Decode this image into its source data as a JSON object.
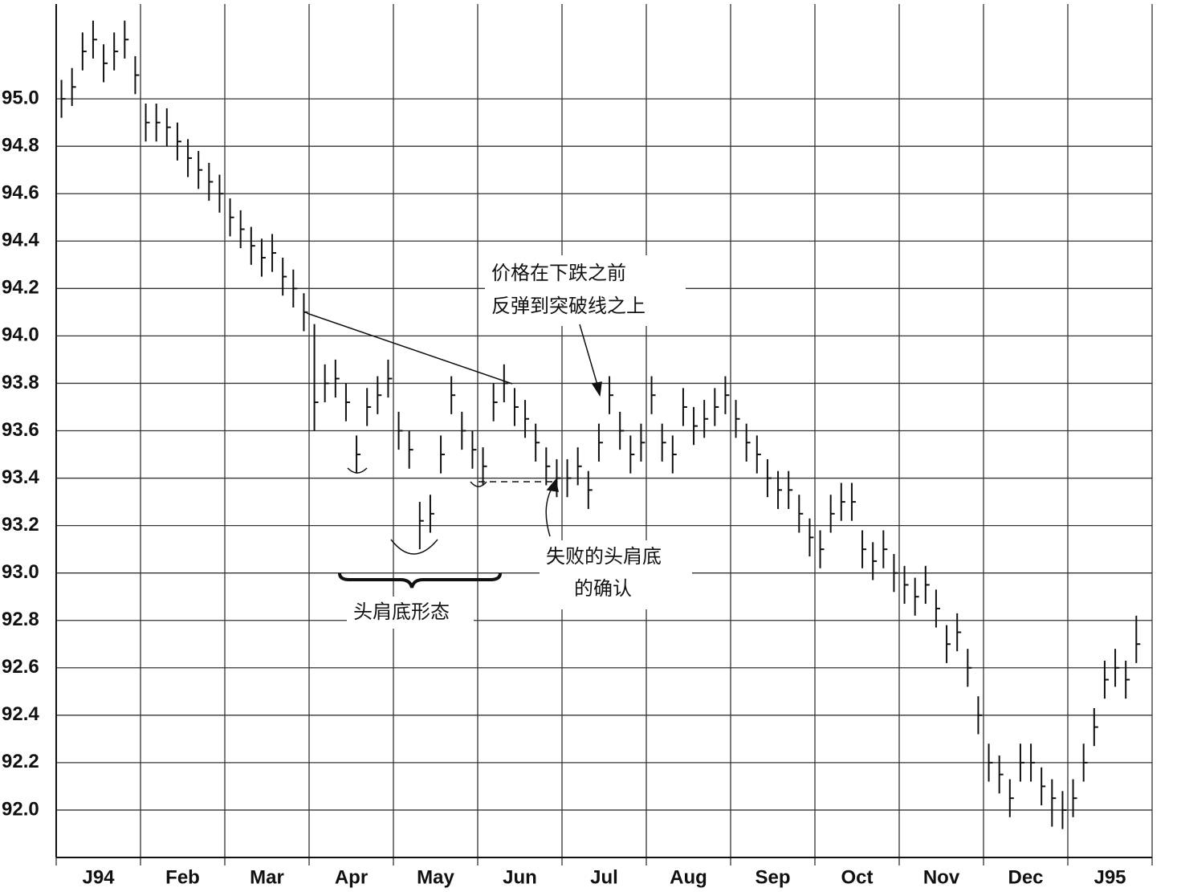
{
  "chart_data": {
    "type": "ohlc",
    "xlim": [
      0,
      104
    ],
    "ylim": [
      91.8,
      95.4
    ],
    "xticks": [
      {
        "value": 4,
        "label": "J94"
      },
      {
        "value": 12,
        "label": "Feb"
      },
      {
        "value": 20,
        "label": "Mar"
      },
      {
        "value": 28,
        "label": "Apr"
      },
      {
        "value": 36,
        "label": "May"
      },
      {
        "value": 44,
        "label": "Jun"
      },
      {
        "value": 52,
        "label": "Jul"
      },
      {
        "value": 60,
        "label": "Aug"
      },
      {
        "value": 68,
        "label": "Sep"
      },
      {
        "value": 76,
        "label": "Oct"
      },
      {
        "value": 84,
        "label": "Nov"
      },
      {
        "value": 92,
        "label": "Dec"
      },
      {
        "value": 100,
        "label": "J95"
      }
    ],
    "xgrid": [
      0,
      8,
      16,
      24,
      32,
      40,
      48,
      56,
      64,
      72,
      80,
      88,
      96,
      104
    ],
    "yticks": [
      {
        "value": 92,
        "label": "92.0"
      },
      {
        "value": 92.2,
        "label": "92.2"
      },
      {
        "value": 92.4,
        "label": "92.4"
      },
      {
        "value": 92.6,
        "label": "92.6"
      },
      {
        "value": 92.8,
        "label": "92.8"
      },
      {
        "value": 93,
        "label": "93.0"
      },
      {
        "value": 93.2,
        "label": "93.2"
      },
      {
        "value": 93.4,
        "label": "93.4"
      },
      {
        "value": 93.6,
        "label": "93.6"
      },
      {
        "value": 93.8,
        "label": "93.8"
      },
      {
        "value": 94,
        "label": "94.0"
      },
      {
        "value": 94.2,
        "label": "94.2"
      },
      {
        "value": 94.4,
        "label": "94.4"
      },
      {
        "value": 94.6,
        "label": "94.6"
      },
      {
        "value": 94.8,
        "label": "94.8"
      },
      {
        "value": 95,
        "label": "95.0"
      }
    ],
    "grid": true,
    "color": "#111111",
    "high": [
      95.08,
      95.13,
      95.28,
      95.33,
      95.23,
      95.28,
      95.33,
      95.18,
      94.98,
      94.98,
      94.96,
      94.9,
      94.83,
      94.78,
      94.73,
      94.68,
      94.58,
      94.53,
      94.46,
      94.41,
      94.43,
      94.33,
      94.28,
      94.18,
      94.05,
      93.88,
      93.9,
      93.8,
      93.58,
      93.78,
      93.83,
      93.9,
      93.68,
      93.6,
      93.3,
      93.33,
      93.58,
      93.83,
      93.68,
      93.6,
      93.53,
      93.8,
      93.88,
      93.78,
      93.73,
      93.63,
      93.53,
      93.48,
      93.48,
      93.53,
      93.43,
      93.63,
      93.83,
      93.68,
      93.58,
      93.63,
      93.83,
      93.63,
      93.58,
      93.78,
      93.7,
      93.73,
      93.78,
      93.83,
      93.73,
      93.63,
      93.58,
      93.48,
      93.43,
      93.43,
      93.33,
      93.23,
      93.18,
      93.33,
      93.38,
      93.38,
      93.18,
      93.13,
      93.18,
      93.08,
      93.03,
      92.98,
      93.03,
      92.93,
      92.78,
      92.83,
      92.68,
      92.48,
      92.28,
      92.23,
      92.13,
      92.28,
      92.28,
      92.18,
      92.13,
      92.08,
      92.13,
      92.28,
      92.43,
      92.63,
      92.68,
      92.63,
      92.82
    ],
    "low": [
      94.92,
      94.97,
      95.12,
      95.17,
      95.07,
      95.12,
      95.17,
      95.02,
      94.82,
      94.82,
      94.8,
      94.74,
      94.67,
      94.62,
      94.57,
      94.52,
      94.42,
      94.37,
      94.3,
      94.25,
      94.27,
      94.17,
      94.12,
      94.02,
      93.6,
      93.72,
      93.74,
      93.64,
      93.42,
      93.62,
      93.67,
      93.74,
      93.52,
      93.44,
      93.1,
      93.17,
      93.42,
      93.67,
      93.52,
      93.44,
      93.37,
      93.64,
      93.72,
      93.62,
      93.57,
      93.47,
      93.37,
      93.32,
      93.32,
      93.37,
      93.27,
      93.47,
      93.67,
      93.52,
      93.42,
      93.47,
      93.67,
      93.47,
      93.42,
      93.62,
      93.54,
      93.57,
      93.62,
      93.67,
      93.57,
      93.47,
      93.42,
      93.32,
      93.27,
      93.27,
      93.17,
      93.07,
      93.02,
      93.17,
      93.22,
      93.22,
      93.02,
      92.97,
      93.02,
      92.92,
      92.87,
      92.82,
      92.87,
      92.77,
      92.62,
      92.67,
      92.52,
      92.32,
      92.12,
      92.07,
      91.97,
      92.12,
      92.12,
      92.02,
      91.93,
      91.92,
      91.97,
      92.12,
      92.27,
      92.47,
      92.52,
      92.47,
      92.62
    ],
    "close": [
      95.0,
      95.05,
      95.2,
      95.25,
      95.15,
      95.2,
      95.25,
      95.1,
      94.9,
      94.9,
      94.88,
      94.82,
      94.75,
      94.7,
      94.65,
      94.6,
      94.5,
      94.45,
      94.38,
      94.33,
      94.35,
      94.25,
      94.2,
      94.1,
      93.72,
      93.8,
      93.82,
      93.72,
      93.5,
      93.7,
      93.75,
      93.82,
      93.6,
      93.52,
      93.22,
      93.25,
      93.5,
      93.75,
      93.6,
      93.52,
      93.45,
      93.72,
      93.8,
      93.7,
      93.65,
      93.55,
      93.45,
      93.4,
      93.4,
      93.45,
      93.35,
      93.55,
      93.75,
      93.6,
      93.5,
      93.55,
      93.75,
      93.55,
      93.5,
      93.7,
      93.62,
      93.65,
      93.7,
      93.75,
      93.65,
      93.55,
      93.5,
      93.4,
      93.35,
      93.35,
      93.25,
      93.15,
      93.1,
      93.25,
      93.3,
      93.3,
      93.1,
      93.05,
      93.1,
      93.0,
      92.95,
      92.9,
      92.95,
      92.85,
      92.7,
      92.75,
      92.6,
      92.4,
      92.2,
      92.15,
      92.05,
      92.2,
      92.2,
      92.1,
      92.05,
      92.0,
      92.05,
      92.2,
      92.35,
      92.55,
      92.6,
      92.55,
      92.7
    ],
    "annotations": [
      [
        "价格在下跌之前",
        "反弹到突破线之上"
      ],
      [
        "失败的头肩底",
        "的确认"
      ],
      [
        "头肩底形态"
      ]
    ]
  }
}
